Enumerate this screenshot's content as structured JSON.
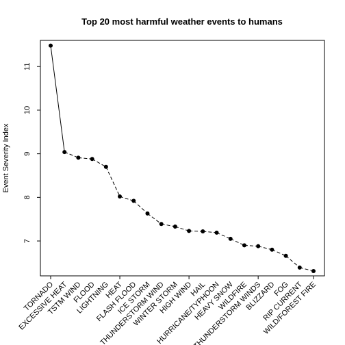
{
  "chart_data": {
    "type": "line",
    "title": "Top 20 most harmful weather events to humans",
    "xlabel": "",
    "ylabel": "Event Severity Index",
    "ylim": [
      6.2,
      11.6
    ],
    "yticks": [
      7,
      8,
      9,
      10,
      11
    ],
    "grid": false,
    "legend": "none",
    "line_style": "dashed after third point, solid at start",
    "marker": "filled-circle",
    "color": "#000000",
    "categories": [
      "TORNADO",
      "EXCESSIVE HEAT",
      "TSTM WIND",
      "FLOOD",
      "LIGHTNING",
      "HEAT",
      "FLASH FLOOD",
      "ICE STORM",
      "THUNDERSTORM WIND",
      "WINTER STORM",
      "HIGH WIND",
      "HAIL",
      "HURRICANE/TYPHOON",
      "HEAVY SNOW",
      "WILDFIRE",
      "THUNDERSTORM WINDS",
      "BLIZZARD",
      "FOG",
      "RIP CURRENT",
      "WILD/FOREST FIRE"
    ],
    "values": [
      11.48,
      9.04,
      8.91,
      8.88,
      8.7,
      8.02,
      7.92,
      7.63,
      7.39,
      7.33,
      7.23,
      7.22,
      7.19,
      7.05,
      6.9,
      6.88,
      6.8,
      6.66,
      6.39,
      6.31
    ]
  }
}
